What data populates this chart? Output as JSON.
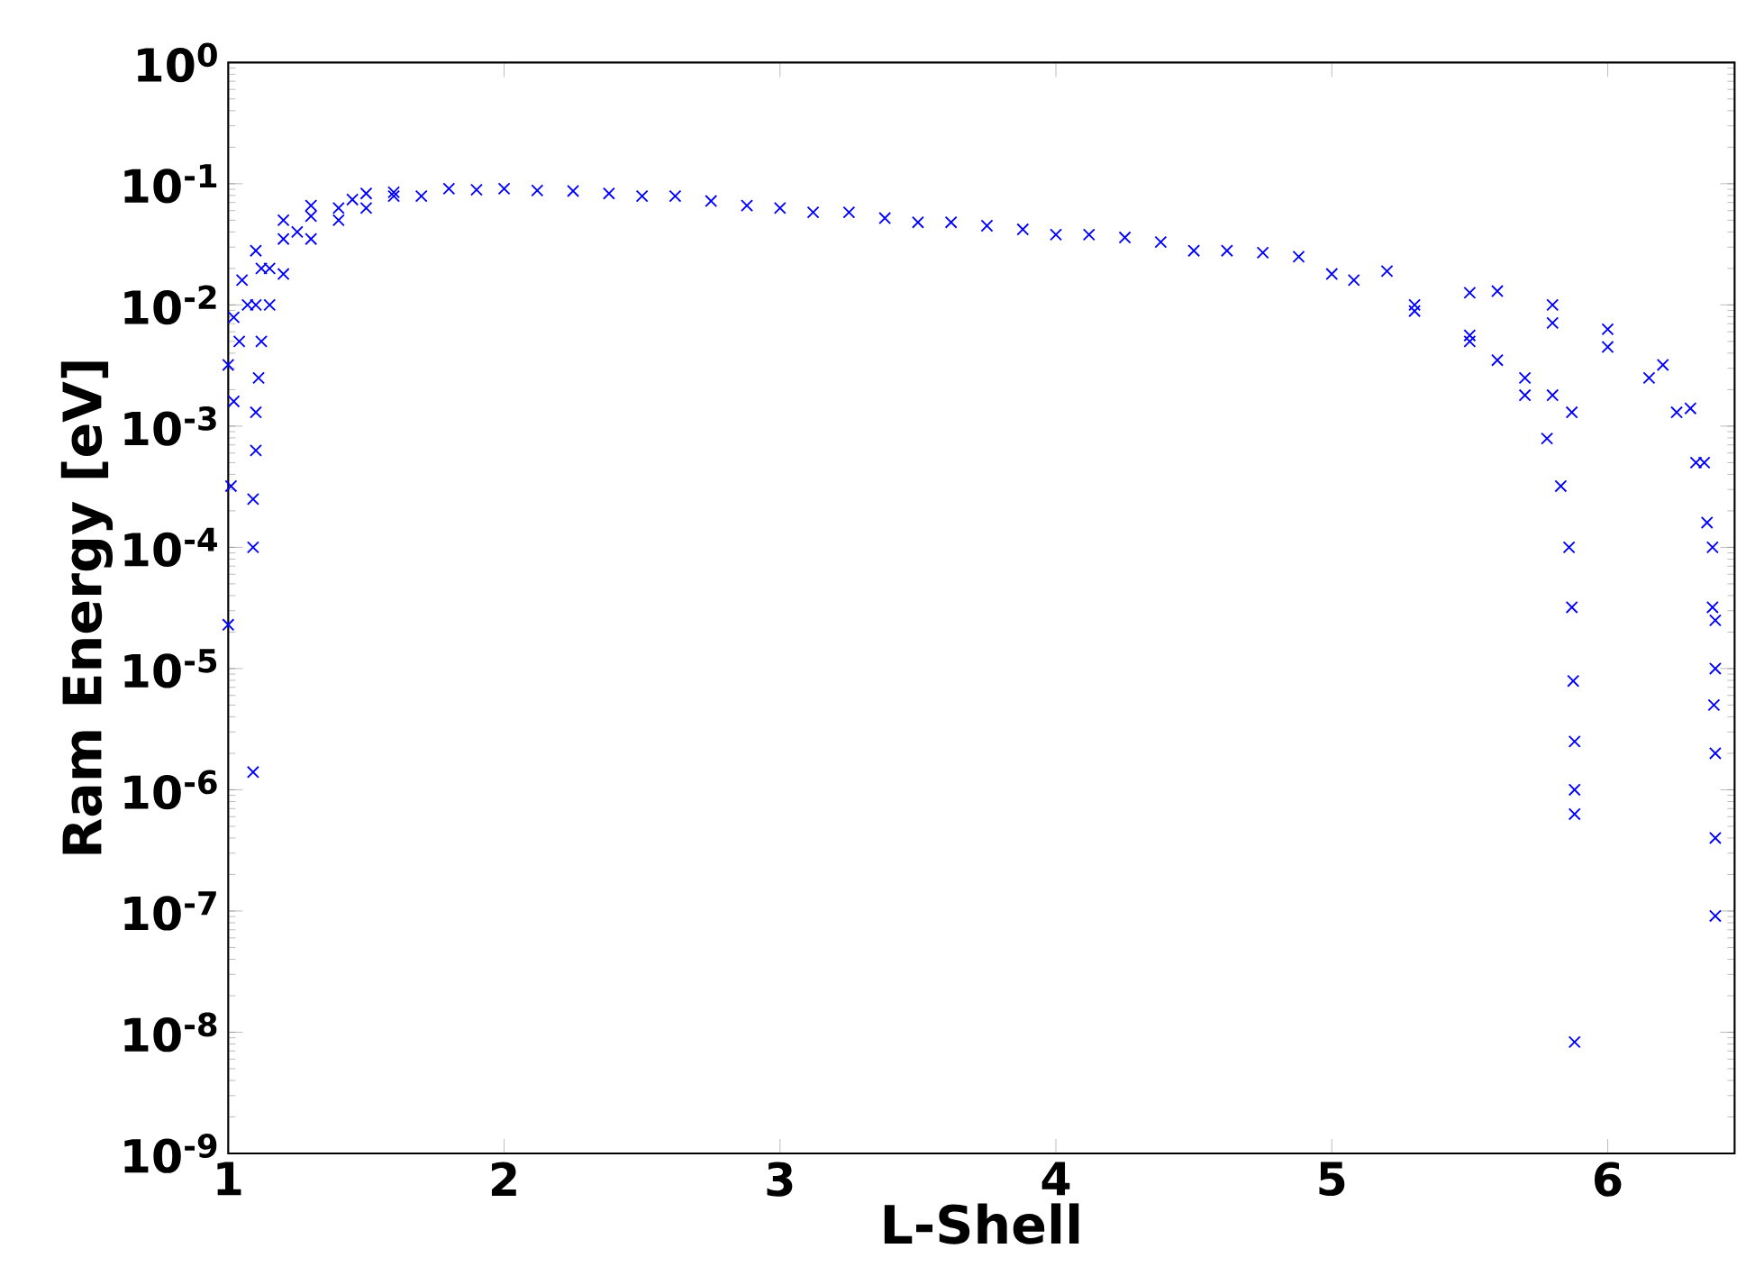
{
  "chart_data": {
    "type": "scatter",
    "xlabel": "L-Shell",
    "ylabel": "Ram Energy [eV]",
    "log": "y",
    "marker": "cross",
    "xlim": [
      1,
      6.46
    ],
    "xticks": [
      1,
      2,
      3,
      4,
      5,
      6
    ],
    "ylim": [
      1e-09,
      1
    ],
    "yticks": [
      {
        "value": 1e-09,
        "label": "10$^{-9}$"
      },
      {
        "value": 1e-08,
        "label": "10$^{-8}$"
      },
      {
        "value": 1e-07,
        "label": "10$^{-7}$"
      },
      {
        "value": 1e-06,
        "label": "10$^{-6}$"
      },
      {
        "value": 1e-05,
        "label": "10$^{-5}$"
      },
      {
        "value": 0.0001,
        "label": "10$^{-4}$"
      },
      {
        "value": 0.001,
        "label": "10$^{-3}$"
      },
      {
        "value": 0.01,
        "label": "10$^{-2}$"
      },
      {
        "value": 0.1,
        "label": "10$^{-1}$"
      },
      {
        "value": 1,
        "label": "10$^{0}$"
      }
    ],
    "series": [
      {
        "color": "#0000ff",
        "x": [
          1.0,
          1.01,
          1.02,
          1.04,
          1.07,
          1.12,
          1.2,
          1.3,
          1.45,
          1.6,
          1.8,
          2.0,
          2.5,
          3.0,
          3.5,
          4.0,
          4.5,
          5.0,
          5.3,
          5.5,
          5.6,
          5.7,
          5.78,
          5.83,
          5.86,
          5.87,
          5.875,
          5.88,
          5.88,
          5.88,
          5.88
        ],
        "values": [
          2.3e-05,
          0.00032,
          0.0016,
          0.005,
          0.01,
          0.02,
          0.035,
          0.054,
          0.074,
          0.085,
          0.091,
          0.091,
          0.079,
          0.063,
          0.048,
          0.038,
          0.028,
          0.018,
          0.01,
          0.0056,
          0.0035,
          0.0018,
          0.00079,
          0.00032,
          0.0001,
          3.2e-05,
          7.9e-06,
          2.5e-06,
          1e-06,
          6.3e-07,
          8.3e-09
        ]
      },
      {
        "color": "#0000ff",
        "x": [
          1.09,
          1.09,
          1.09,
          1.1,
          1.1,
          1.11,
          1.12,
          1.15,
          1.2,
          1.3,
          1.4,
          1.5,
          1.7,
          1.9,
          2.62,
          3.12,
          3.62,
          4.12,
          4.62,
          5.08,
          5.3,
          5.5,
          5.7,
          5.8,
          5.87
        ],
        "values": [
          1.4e-06,
          0.0001,
          0.00025,
          0.00063,
          0.0013,
          0.0025,
          0.005,
          0.01,
          0.018,
          0.035,
          0.05,
          0.063,
          0.079,
          0.089,
          0.079,
          0.058,
          0.048,
          0.038,
          0.028,
          0.016,
          0.0089,
          0.005,
          0.0025,
          0.0018,
          0.0013
        ]
      },
      {
        "color": "#0000ff",
        "x": [
          1.0,
          1.02,
          1.05,
          1.1,
          1.2,
          1.3,
          1.5,
          2.25,
          2.75,
          3.25,
          3.75,
          4.25,
          4.75,
          5.2,
          5.5,
          5.8,
          6.0,
          6.15,
          6.25,
          6.32,
          6.36,
          6.38,
          6.385,
          6.39,
          6.39,
          6.39
        ],
        "values": [
          0.0032,
          0.0079,
          0.016,
          0.028,
          0.05,
          0.066,
          0.083,
          0.087,
          0.072,
          0.058,
          0.045,
          0.036,
          0.027,
          0.019,
          0.0126,
          0.0071,
          0.0045,
          0.0025,
          0.0013,
          0.0005,
          0.00016,
          3.2e-05,
          5e-06,
          2e-06,
          4e-07,
          9.1e-08
        ]
      },
      {
        "color": "#0000ff",
        "x": [
          1.1,
          1.15,
          1.25,
          1.4,
          1.6,
          2.12,
          2.38,
          2.88,
          3.38,
          3.88,
          4.38,
          4.88,
          5.6,
          5.8,
          6.0,
          6.2,
          6.3,
          6.35,
          6.38,
          6.39,
          6.39
        ],
        "values": [
          0.01,
          0.02,
          0.04,
          0.063,
          0.079,
          0.088,
          0.083,
          0.066,
          0.052,
          0.042,
          0.033,
          0.025,
          0.013,
          0.01,
          0.0063,
          0.0032,
          0.0014,
          0.0005,
          0.0001,
          2.5e-05,
          1e-05
        ]
      }
    ]
  }
}
